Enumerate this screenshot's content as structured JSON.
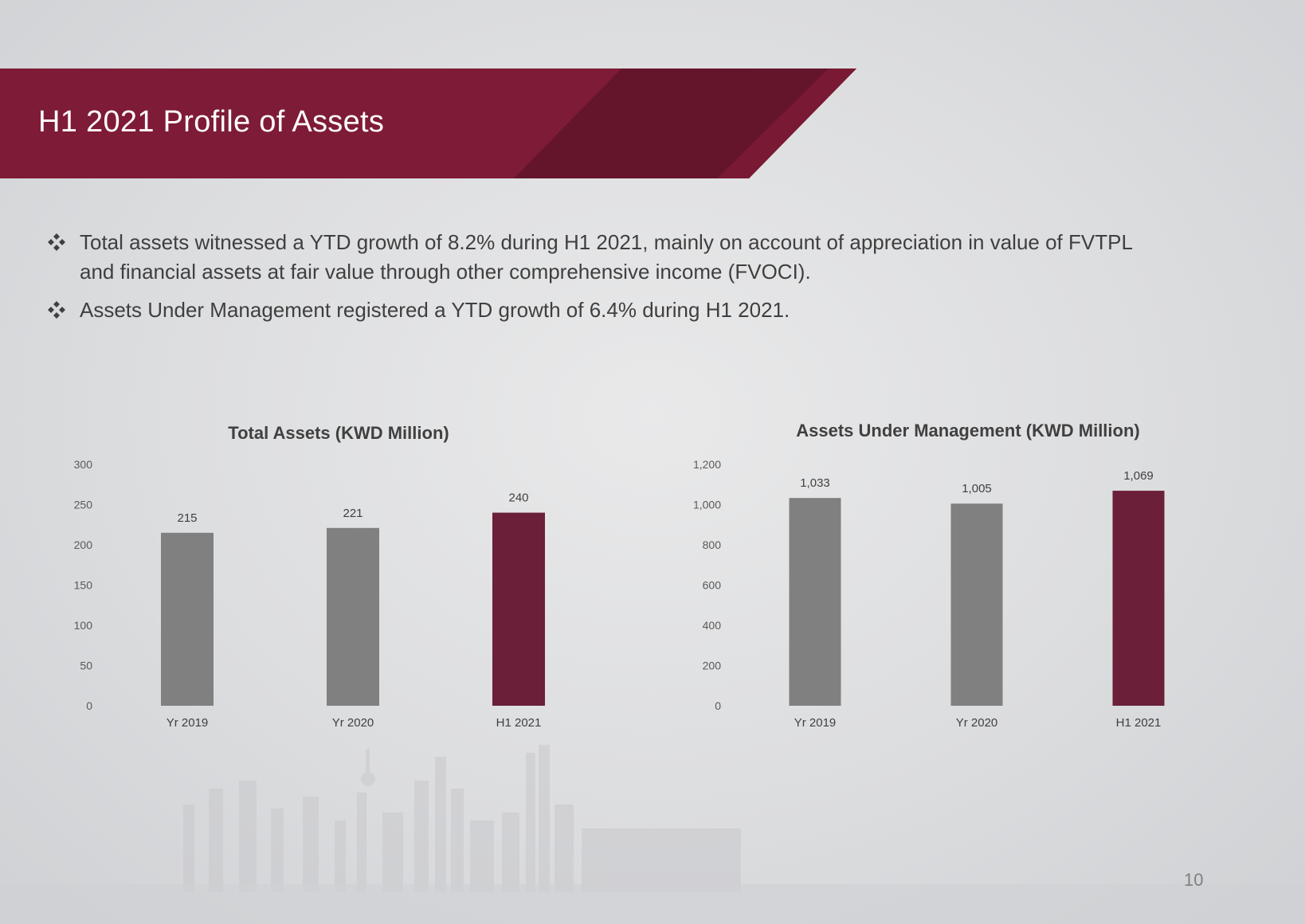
{
  "slide": {
    "title": "H1 2021 Profile of Assets",
    "bullets": [
      "Total assets witnessed a YTD growth of 8.2% during H1 2021, mainly on account of appreciation in value of FVTPL and financial assets at fair value through other comprehensive income (FVOCI).",
      "Assets Under Management registered a YTD growth of 6.4% during H1 2021."
    ],
    "page_number": "10",
    "colors": {
      "band": "#7e1b37",
      "band_dark": "#64152b",
      "bar_grey": "#808080",
      "bar_highlight": "#6b1f38"
    },
    "icons": {
      "bullet": "diamond-cluster-icon"
    }
  },
  "chart_data": [
    {
      "type": "bar",
      "title": "Total Assets (KWD Million)",
      "categories": [
        "Yr 2019",
        "Yr 2020",
        "H1 2021"
      ],
      "values": [
        215,
        221,
        240
      ],
      "value_labels": [
        "215",
        "221",
        "240"
      ],
      "ylim": [
        0,
        300
      ],
      "yticks": [
        0,
        50,
        100,
        150,
        200,
        250,
        300
      ],
      "ytick_labels": [
        "0",
        "50",
        "100",
        "150",
        "200",
        "250",
        "300"
      ],
      "bar_colors": [
        "#808080",
        "#808080",
        "#6b1f38"
      ],
      "grid": false,
      "legend": "none"
    },
    {
      "type": "bar",
      "title": "Assets Under Management (KWD Million)",
      "categories": [
        "Yr 2019",
        "Yr 2020",
        "H1 2021"
      ],
      "values": [
        1033,
        1005,
        1069
      ],
      "value_labels": [
        "1,033",
        "1,005",
        "1,069"
      ],
      "ylim": [
        0,
        1200
      ],
      "yticks": [
        0,
        200,
        400,
        600,
        800,
        1000,
        1200
      ],
      "ytick_labels": [
        "0",
        "200",
        "400",
        "600",
        "800",
        "1,000",
        "1,200"
      ],
      "bar_colors": [
        "#808080",
        "#808080",
        "#6b1f38"
      ],
      "grid": false,
      "legend": "none"
    }
  ]
}
